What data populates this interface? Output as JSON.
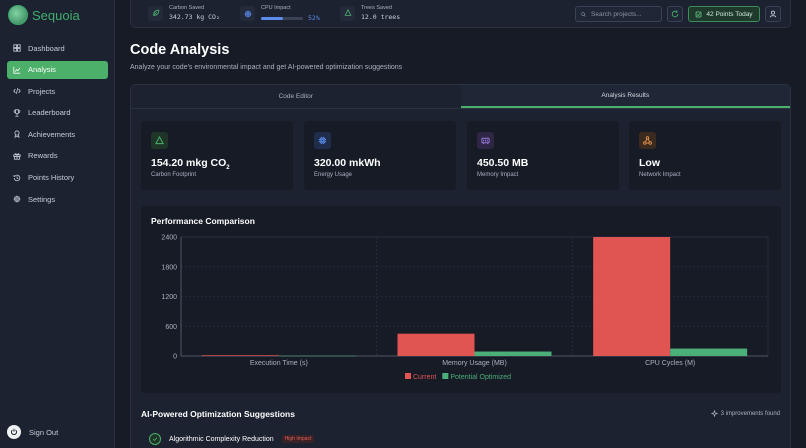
{
  "brand": {
    "name": "Sequoia"
  },
  "sidebar": {
    "items": [
      {
        "label": "Dashboard",
        "icon": "dashboard-icon"
      },
      {
        "label": "Analysis",
        "icon": "chart-icon"
      },
      {
        "label": "Projects",
        "icon": "code-icon"
      },
      {
        "label": "Leaderboard",
        "icon": "trophy-icon"
      },
      {
        "label": "Achievements",
        "icon": "award-icon"
      },
      {
        "label": "Rewards",
        "icon": "gift-icon"
      },
      {
        "label": "Points History",
        "icon": "history-icon"
      },
      {
        "label": "Settings",
        "icon": "gear-icon"
      }
    ],
    "active_index": 1,
    "signout": "Sign Out"
  },
  "topbar": {
    "carbon": {
      "label": "Carbon Saved",
      "value": "342.73 kg CO₂"
    },
    "cpu": {
      "label": "CPU Impact",
      "value": "52%",
      "fraction": 0.52
    },
    "trees": {
      "label": "Trees Saved",
      "value": "12.0 trees"
    },
    "search_placeholder": "Search projects...",
    "points": "42 Points Today"
  },
  "page": {
    "title": "Code Analysis",
    "subtitle": "Analyze your code's environmental impact and get AI-powered optimization suggestions"
  },
  "tabs": [
    {
      "label": "Code Editor"
    },
    {
      "label": "Analysis Results"
    }
  ],
  "active_tab": 1,
  "metrics": [
    {
      "value": "154.20 mkg CO",
      "sub": "2",
      "label": "Carbon Footprint",
      "icon": "triangle-icon",
      "color": "#4caf6a"
    },
    {
      "value": "320.00 mkWh",
      "sub": "",
      "label": "Energy Usage",
      "icon": "chip-icon",
      "color": "#5b8def"
    },
    {
      "value": "450.50 MB",
      "sub": "",
      "label": "Memory Impact",
      "icon": "memory-icon",
      "color": "#9b7be0"
    },
    {
      "value": "Low",
      "sub": "",
      "label": "Network Impact",
      "icon": "network-icon",
      "color": "#e8934a"
    }
  ],
  "chart_data": {
    "type": "bar",
    "title": "Performance Comparison",
    "categories": [
      "Execution Time (s)",
      "Memory Usage (MB)",
      "CPU Cycles (M)"
    ],
    "series": [
      {
        "name": "Current",
        "values": [
          15,
          450,
          2400
        ],
        "color": "#e05552"
      },
      {
        "name": "Potential Optimized",
        "values": [
          5,
          90,
          150
        ],
        "color": "#4caf7a"
      }
    ],
    "yticks": [
      0,
      600,
      1200,
      1800,
      2400
    ],
    "ylim": [
      0,
      2400
    ],
    "grid": true,
    "legend": "bottom"
  },
  "suggestions": {
    "title": "AI-Powered Optimization Suggestions",
    "count_label": "3 improvements found",
    "items": [
      {
        "name": "Algorithmic Complexity Reduction",
        "badge": "High Impact"
      }
    ]
  }
}
